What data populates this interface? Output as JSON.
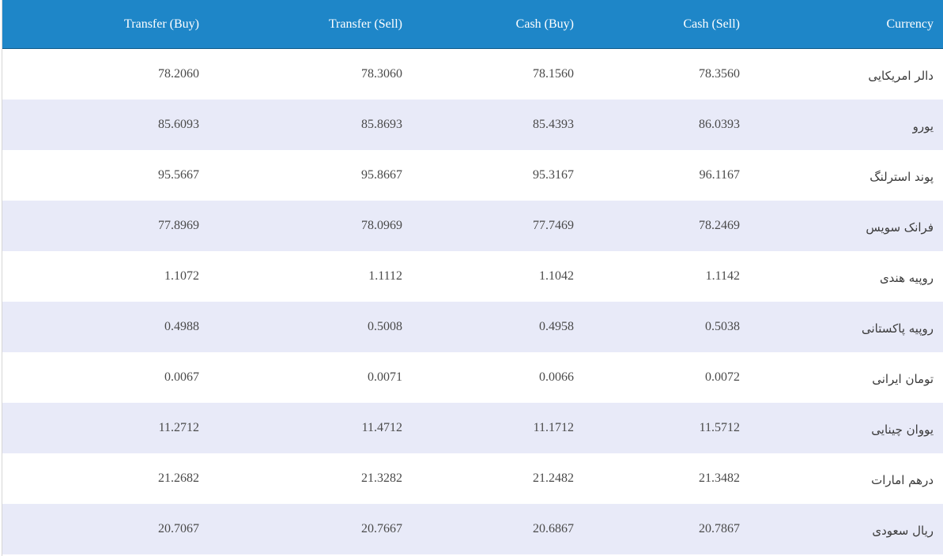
{
  "colors": {
    "header_bg": "#1e86c8",
    "header_text": "#ffffff",
    "row_alt_bg": "#e8eaf8",
    "row_bg": "#ffffff",
    "cell_text": "#4a4a4a"
  },
  "table": {
    "headers": {
      "transfer_buy": "Transfer (Buy)",
      "transfer_sell": "Transfer (Sell)",
      "cash_buy": "Cash (Buy)",
      "cash_sell": "Cash (Sell)",
      "currency": "Currency"
    },
    "rows": [
      {
        "transfer_buy": "78.2060",
        "transfer_sell": "78.3060",
        "cash_buy": "78.1560",
        "cash_sell": "78.3560",
        "currency": "دالر امریکایی"
      },
      {
        "transfer_buy": "85.6093",
        "transfer_sell": "85.8693",
        "cash_buy": "85.4393",
        "cash_sell": "86.0393",
        "currency": "یورو"
      },
      {
        "transfer_buy": "95.5667",
        "transfer_sell": "95.8667",
        "cash_buy": "95.3167",
        "cash_sell": "96.1167",
        "currency": "پوند استرلنگ"
      },
      {
        "transfer_buy": "77.8969",
        "transfer_sell": "78.0969",
        "cash_buy": "77.7469",
        "cash_sell": "78.2469",
        "currency": "فرانک سویس"
      },
      {
        "transfer_buy": "1.1072",
        "transfer_sell": "1.1112",
        "cash_buy": "1.1042",
        "cash_sell": "1.1142",
        "currency": "روپیه هندی"
      },
      {
        "transfer_buy": "0.4988",
        "transfer_sell": "0.5008",
        "cash_buy": "0.4958",
        "cash_sell": "0.5038",
        "currency": "روپیه پاکستانی"
      },
      {
        "transfer_buy": "0.0067",
        "transfer_sell": "0.0071",
        "cash_buy": "0.0066",
        "cash_sell": "0.0072",
        "currency": "تومان ایرانی"
      },
      {
        "transfer_buy": "11.2712",
        "transfer_sell": "11.4712",
        "cash_buy": "11.1712",
        "cash_sell": "11.5712",
        "currency": "یووان چینایی"
      },
      {
        "transfer_buy": "21.2682",
        "transfer_sell": "21.3282",
        "cash_buy": "21.2482",
        "cash_sell": "21.3482",
        "currency": "درهم امارات"
      },
      {
        "transfer_buy": "20.7067",
        "transfer_sell": "20.7667",
        "cash_buy": "20.6867",
        "cash_sell": "20.7867",
        "currency": "ریال سعودی"
      }
    ]
  }
}
